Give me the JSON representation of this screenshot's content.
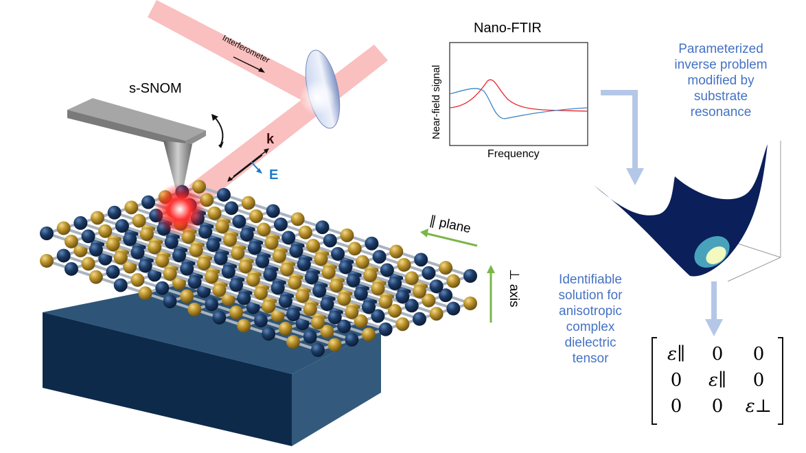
{
  "illustration": {
    "interferometer_label": "Interferometer",
    "tip_label": "s-SNOM",
    "k_label": "k",
    "e_label": "E",
    "parallel_label": "∥ plane",
    "perp_label": "⊥ axis",
    "substrate_label": "substrate",
    "colors": {
      "beam": "#f9b4b4",
      "substrate": "#1f3f5e",
      "atom_dark": "#1c3b66",
      "atom_gold": "#b8902a",
      "arrow_green": "#7ab648",
      "e_blue": "#1f7ac8"
    }
  },
  "chart_data": {
    "type": "line",
    "title": "Nano-FTIR",
    "xlabel": "Frequency",
    "ylabel": "Near-field signal",
    "ticks": "none",
    "series": [
      {
        "color": "#e8232a",
        "shape": "resonance peak then flat"
      },
      {
        "color": "#3b84c6",
        "shape": "dispersive: rise, dip, recover"
      }
    ]
  },
  "annotations": {
    "problem_text": [
      "Parameterized",
      "inverse problem",
      "modified by",
      "substrate",
      "resonance"
    ],
    "solution_text": [
      "Identifiable",
      "solution for",
      "anisotropic",
      "complex",
      "dielectric",
      "tensor"
    ],
    "text_color": "#4472c4",
    "arrow_color": "#b4c7e7"
  },
  "matrix": {
    "r0": [
      "ε∥",
      "0",
      "0"
    ],
    "r1": [
      "0",
      "ε∥",
      "0"
    ],
    "r2": [
      "0",
      "0",
      "ε⊥"
    ]
  }
}
